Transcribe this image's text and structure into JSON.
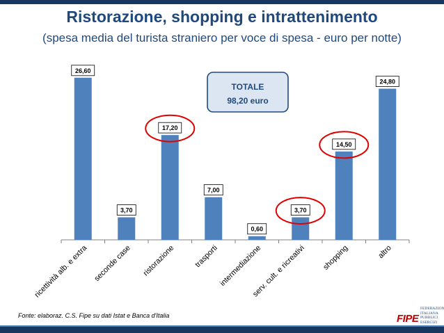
{
  "header": {
    "title": "Ristorazione, shopping e intrattenimento",
    "subtitle": "(spesa media del turista straniero per voce di spesa - euro per notte)"
  },
  "total_box": {
    "label": "TOTALE",
    "value": "98,20 euro"
  },
  "chart_data": {
    "type": "bar",
    "categories": [
      "ricettività alb. e extra",
      "seconde case",
      "ristorazione",
      "trasporti",
      "intermediazione",
      "serv. cult. e ricreativi",
      "shopping",
      "altro"
    ],
    "values": [
      26.6,
      3.7,
      17.2,
      7.0,
      0.6,
      3.7,
      14.5,
      24.8
    ],
    "value_labels": [
      "26,60",
      "3,70",
      "17,20",
      "7,00",
      "0,60",
      "3,70",
      "14,50",
      "24,80"
    ],
    "highlighted": [
      "ristorazione",
      "serv. cult. e ricreativi",
      "shopping"
    ],
    "ylim": [
      0,
      30
    ],
    "grid": false,
    "bar_color": "#4f81bd",
    "highlight_color": "#e00000"
  },
  "footer": {
    "source": "Fonte: elaboraz. C.S. Fipe su dati Istat e Banca d'Italia",
    "logo_name": "FIPE",
    "logo_text": "FEDERAZIONE\nITALIANA\nPUBBLICI\nESERCIZI"
  }
}
